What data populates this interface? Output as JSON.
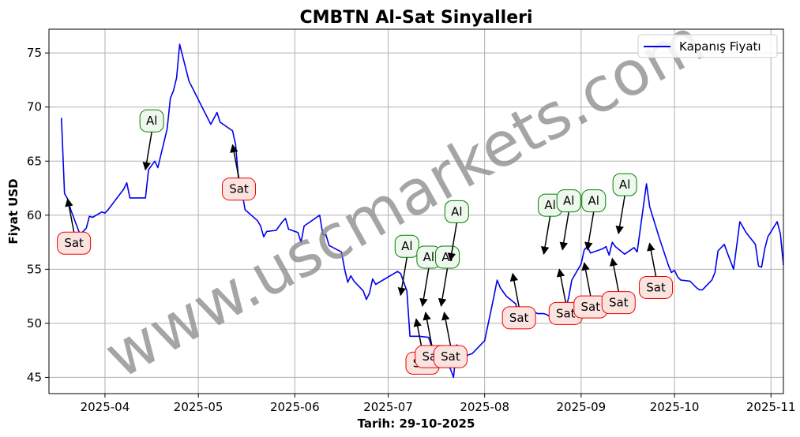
{
  "chart_data": {
    "type": "line",
    "title": "CMBTN Al-Sat Sinyalleri",
    "xlabel": "Tarih: 29-10-2025",
    "ylabel": "Fiyat USD",
    "xlim": [
      "2025-03-14",
      "2025-11-05"
    ],
    "ylim": [
      43.5,
      77.2
    ],
    "grid": true,
    "legend_position": "top-right",
    "x_ticks": [
      "2025-04",
      "2025-05",
      "2025-06",
      "2025-07",
      "2025-08",
      "2025-09",
      "2025-10",
      "2025-11"
    ],
    "y_ticks": [
      45,
      50,
      55,
      60,
      65,
      70,
      75
    ],
    "series": [
      {
        "name": "Kapanış Fiyatı",
        "color": "#0000ee",
        "points": [
          [
            "2025-03-18",
            69.0
          ],
          [
            "2025-03-19",
            62.0
          ],
          [
            "2025-03-20",
            61.5
          ],
          [
            "2025-03-21",
            60.5
          ],
          [
            "2025-03-24",
            58.2
          ],
          [
            "2025-03-25",
            58.5
          ],
          [
            "2025-03-26",
            58.8
          ],
          [
            "2025-03-27",
            59.9
          ],
          [
            "2025-03-28",
            59.8
          ],
          [
            "2025-03-31",
            60.3
          ],
          [
            "2025-04-01",
            60.2
          ],
          [
            "2025-04-02",
            60.5
          ],
          [
            "2025-04-07",
            62.4
          ],
          [
            "2025-04-08",
            63.0
          ],
          [
            "2025-04-09",
            61.6
          ],
          [
            "2025-04-10",
            61.6
          ],
          [
            "2025-04-11",
            61.6
          ],
          [
            "2025-04-14",
            61.6
          ],
          [
            "2025-04-15",
            64.2
          ],
          [
            "2025-04-16",
            64.6
          ],
          [
            "2025-04-17",
            65.0
          ],
          [
            "2025-04-18",
            64.4
          ],
          [
            "2025-04-21",
            68.0
          ],
          [
            "2025-04-22",
            70.8
          ],
          [
            "2025-04-23",
            71.5
          ],
          [
            "2025-04-24",
            72.7
          ],
          [
            "2025-04-25",
            75.8
          ],
          [
            "2025-04-28",
            72.4
          ],
          [
            "2025-05-05",
            68.4
          ],
          [
            "2025-05-07",
            69.5
          ],
          [
            "2025-05-08",
            68.6
          ],
          [
            "2025-05-12",
            67.8
          ],
          [
            "2025-05-13",
            66.5
          ],
          [
            "2025-05-14",
            63.0
          ],
          [
            "2025-05-15",
            62.2
          ],
          [
            "2025-05-16",
            60.5
          ],
          [
            "2025-05-20",
            59.5
          ],
          [
            "2025-05-21",
            59.0
          ],
          [
            "2025-05-22",
            58.0
          ],
          [
            "2025-05-23",
            58.5
          ],
          [
            "2025-05-26",
            58.6
          ],
          [
            "2025-05-28",
            59.4
          ],
          [
            "2025-05-29",
            59.7
          ],
          [
            "2025-05-30",
            58.7
          ],
          [
            "2025-06-02",
            58.4
          ],
          [
            "2025-06-03",
            57.5
          ],
          [
            "2025-06-04",
            59.0
          ],
          [
            "2025-06-09",
            60.0
          ],
          [
            "2025-06-10",
            58.2
          ],
          [
            "2025-06-11",
            58.2
          ],
          [
            "2025-06-12",
            57.2
          ],
          [
            "2025-06-16",
            56.6
          ],
          [
            "2025-06-17",
            55.0
          ],
          [
            "2025-06-18",
            53.8
          ],
          [
            "2025-06-19",
            54.4
          ],
          [
            "2025-06-20",
            53.9
          ],
          [
            "2025-06-23",
            53.0
          ],
          [
            "2025-06-24",
            52.2
          ],
          [
            "2025-06-25",
            52.8
          ],
          [
            "2025-06-26",
            54.1
          ],
          [
            "2025-06-27",
            53.6
          ],
          [
            "2025-07-04",
            54.8
          ],
          [
            "2025-07-05",
            54.6
          ],
          [
            "2025-07-07",
            53.0
          ],
          [
            "2025-07-08",
            48.8
          ],
          [
            "2025-07-11",
            48.8
          ],
          [
            "2025-07-14",
            48.7
          ],
          [
            "2025-07-15",
            47.8
          ],
          [
            "2025-07-16",
            47.0
          ],
          [
            "2025-07-17",
            46.4
          ],
          [
            "2025-07-18",
            46.8
          ],
          [
            "2025-07-21",
            45.8
          ],
          [
            "2025-07-22",
            45.0
          ],
          [
            "2025-07-23",
            48.0
          ],
          [
            "2025-07-24",
            47.8
          ],
          [
            "2025-07-25",
            47.6
          ],
          [
            "2025-07-26",
            47.0
          ],
          [
            "2025-07-28",
            47.2
          ],
          [
            "2025-07-31",
            48.1
          ],
          [
            "2025-08-01",
            48.4
          ],
          [
            "2025-08-04",
            52.5
          ],
          [
            "2025-08-05",
            54.0
          ],
          [
            "2025-08-06",
            53.3
          ],
          [
            "2025-08-07",
            52.9
          ],
          [
            "2025-08-08",
            52.5
          ],
          [
            "2025-08-11",
            51.8
          ],
          [
            "2025-08-12",
            50.5
          ],
          [
            "2025-08-13",
            51.2
          ],
          [
            "2025-08-14",
            51.4
          ],
          [
            "2025-08-15",
            51.4
          ],
          [
            "2025-08-18",
            50.9
          ],
          [
            "2025-08-19",
            50.9
          ],
          [
            "2025-08-20",
            50.9
          ],
          [
            "2025-08-21",
            50.8
          ],
          [
            "2025-08-22",
            50.6
          ],
          [
            "2025-08-25",
            50.0
          ],
          [
            "2025-08-26",
            51.5
          ],
          [
            "2025-08-27",
            51.3
          ],
          [
            "2025-08-28",
            52.4
          ],
          [
            "2025-08-29",
            54.0
          ],
          [
            "2025-09-01",
            55.5
          ],
          [
            "2025-09-02",
            56.8
          ],
          [
            "2025-09-03",
            57.1
          ],
          [
            "2025-09-04",
            56.5
          ],
          [
            "2025-09-08",
            56.9
          ],
          [
            "2025-09-09",
            57.1
          ],
          [
            "2025-09-10",
            56.3
          ],
          [
            "2025-09-11",
            57.5
          ],
          [
            "2025-09-12",
            57.1
          ],
          [
            "2025-09-15",
            56.4
          ],
          [
            "2025-09-17",
            56.8
          ],
          [
            "2025-09-18",
            57.0
          ],
          [
            "2025-09-19",
            56.6
          ],
          [
            "2025-09-22",
            62.9
          ],
          [
            "2025-09-23",
            60.8
          ],
          [
            "2025-09-26",
            58.0
          ],
          [
            "2025-09-29",
            55.4
          ],
          [
            "2025-09-30",
            54.7
          ],
          [
            "2025-10-01",
            54.9
          ],
          [
            "2025-10-02",
            54.3
          ],
          [
            "2025-10-03",
            54.0
          ],
          [
            "2025-10-06",
            53.9
          ],
          [
            "2025-10-07",
            53.6
          ],
          [
            "2025-10-08",
            53.3
          ],
          [
            "2025-10-09",
            53.1
          ],
          [
            "2025-10-10",
            53.1
          ],
          [
            "2025-10-13",
            54.0
          ],
          [
            "2025-10-14",
            54.7
          ],
          [
            "2025-10-15",
            56.7
          ],
          [
            "2025-10-17",
            57.3
          ],
          [
            "2025-10-18",
            56.5
          ],
          [
            "2025-10-20",
            55.0
          ],
          [
            "2025-10-21",
            57.2
          ],
          [
            "2025-10-22",
            59.4
          ],
          [
            "2025-10-24",
            58.4
          ],
          [
            "2025-10-27",
            57.3
          ],
          [
            "2025-10-28",
            55.3
          ],
          [
            "2025-10-29",
            55.2
          ],
          [
            "2025-10-30",
            56.9
          ],
          [
            "2025-10-31",
            58.0
          ],
          [
            "2025-11-03",
            59.4
          ],
          [
            "2025-11-04",
            58.3
          ],
          [
            "2025-11-05",
            55.4
          ]
        ]
      }
    ],
    "annotations": [
      {
        "label": "Sat",
        "kind": "sell",
        "x": "2025-03-20",
        "y": 61.5
      },
      {
        "label": "Al",
        "kind": "buy",
        "x": "2025-04-14",
        "y": 64.2
      },
      {
        "label": "Sat",
        "kind": "sell",
        "x": "2025-05-12",
        "y": 66.5
      },
      {
        "label": "Al",
        "kind": "buy",
        "x": "2025-07-05",
        "y": 52.6
      },
      {
        "label": "Sat",
        "kind": "sell",
        "x": "2025-07-10",
        "y": 50.4
      },
      {
        "label": "Al",
        "kind": "buy",
        "x": "2025-07-12",
        "y": 51.6
      },
      {
        "label": "Sat",
        "kind": "sell",
        "x": "2025-07-13",
        "y": 51.0
      },
      {
        "label": "Al",
        "kind": "buy",
        "x": "2025-07-18",
        "y": 51.6
      },
      {
        "label": "Sat",
        "kind": "sell",
        "x": "2025-07-19",
        "y": 51.0
      },
      {
        "label": "Al",
        "kind": "buy",
        "x": "2025-07-21",
        "y": 55.8
      },
      {
        "label": "Sat",
        "kind": "sell",
        "x": "2025-08-10",
        "y": 54.6
      },
      {
        "label": "Al",
        "kind": "buy",
        "x": "2025-08-20",
        "y": 56.4
      },
      {
        "label": "Al",
        "kind": "buy",
        "x": "2025-08-26",
        "y": 56.8
      },
      {
        "label": "Sat",
        "kind": "sell",
        "x": "2025-08-25",
        "y": 55.0
      },
      {
        "label": "Al",
        "kind": "buy",
        "x": "2025-09-03",
        "y": 56.8
      },
      {
        "label": "Sat",
        "kind": "sell",
        "x": "2025-09-02",
        "y": 55.6
      },
      {
        "label": "Sat",
        "kind": "sell",
        "x": "2025-09-11",
        "y": 56.0
      },
      {
        "label": "Al",
        "kind": "buy",
        "x": "2025-09-13",
        "y": 58.3
      },
      {
        "label": "Sat",
        "kind": "sell",
        "x": "2025-09-23",
        "y": 57.4
      }
    ]
  },
  "watermark": "www.uscmarkets.com",
  "colors": {
    "line": "#0000ee",
    "buy_border": "#008000",
    "buy_fill": "#eef8ee",
    "sell_border": "#ee0000",
    "sell_fill": "#fbe3e0",
    "grid": "#b0b0b0",
    "watermark": "#888888"
  }
}
